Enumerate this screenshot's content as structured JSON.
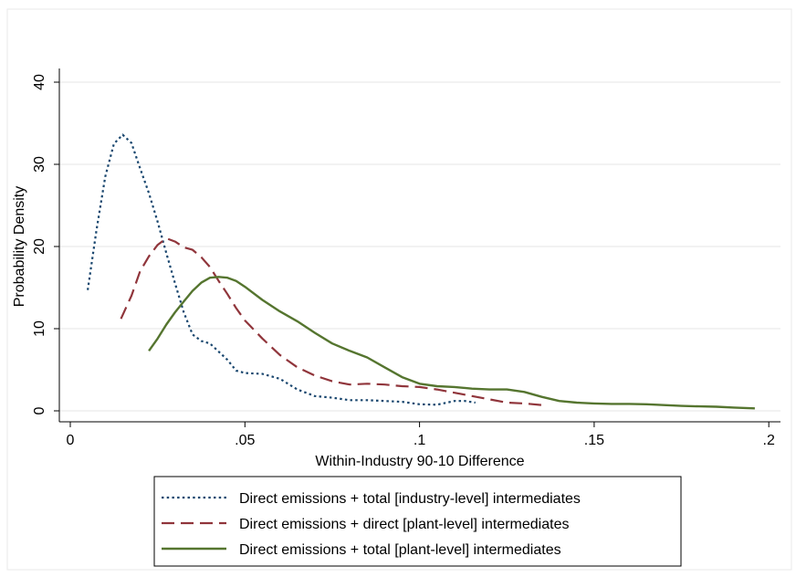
{
  "chart_data": {
    "type": "line",
    "xlabel": "Within-Industry 90-10 Difference",
    "ylabel": "Probability Density",
    "xlim": [
      -0.0017,
      0.2
    ],
    "ylim": [
      -1.4,
      41.5
    ],
    "x_ticks": [
      {
        "value": 0,
        "label": "0"
      },
      {
        "value": 0.05,
        "label": ".05"
      },
      {
        "value": 0.1,
        "label": ".1"
      },
      {
        "value": 0.15,
        "label": ".15"
      },
      {
        "value": 0.2,
        "label": ".2"
      }
    ],
    "y_ticks": [
      {
        "value": 0,
        "label": "0"
      },
      {
        "value": 10,
        "label": "10"
      },
      {
        "value": 20,
        "label": "20"
      },
      {
        "value": 30,
        "label": "30"
      },
      {
        "value": 40,
        "label": "40"
      }
    ],
    "grid": "horizontal",
    "legend_position": "bottom",
    "series": [
      {
        "name": "Direct emissions + total [industry-level] intermediates",
        "color": "#1a476f",
        "style": "dotted",
        "points": [
          [
            0.005,
            14.7
          ],
          [
            0.0075,
            22
          ],
          [
            0.01,
            28.5
          ],
          [
            0.0125,
            32.5
          ],
          [
            0.015,
            33.6
          ],
          [
            0.0175,
            32.6
          ],
          [
            0.02,
            29.5
          ],
          [
            0.0225,
            26.5
          ],
          [
            0.025,
            23
          ],
          [
            0.0275,
            19.2
          ],
          [
            0.03,
            15.5
          ],
          [
            0.0325,
            12
          ],
          [
            0.035,
            9.3
          ],
          [
            0.0375,
            8.5
          ],
          [
            0.04,
            8.2
          ],
          [
            0.0425,
            7.2
          ],
          [
            0.045,
            6.2
          ],
          [
            0.0475,
            4.9
          ],
          [
            0.05,
            4.6
          ],
          [
            0.055,
            4.5
          ],
          [
            0.06,
            3.9
          ],
          [
            0.065,
            2.6
          ],
          [
            0.07,
            1.8
          ],
          [
            0.075,
            1.6
          ],
          [
            0.08,
            1.3
          ],
          [
            0.085,
            1.3
          ],
          [
            0.09,
            1.2
          ],
          [
            0.095,
            1.1
          ],
          [
            0.1,
            0.8
          ],
          [
            0.105,
            0.75
          ],
          [
            0.11,
            1.2
          ],
          [
            0.113,
            1.2
          ],
          [
            0.116,
            1.0
          ]
        ]
      },
      {
        "name": "Direct emissions + direct [plant-level] intermediates",
        "color": "#90353b",
        "style": "dashed",
        "points": [
          [
            0.0145,
            11.2
          ],
          [
            0.0175,
            14
          ],
          [
            0.02,
            17
          ],
          [
            0.0225,
            18.8
          ],
          [
            0.025,
            20.2
          ],
          [
            0.0275,
            21
          ],
          [
            0.03,
            20.6
          ],
          [
            0.0325,
            19.9
          ],
          [
            0.035,
            19.6
          ],
          [
            0.0375,
            18.7
          ],
          [
            0.04,
            17.5
          ],
          [
            0.0425,
            15.8
          ],
          [
            0.045,
            14.2
          ],
          [
            0.0475,
            12.5
          ],
          [
            0.05,
            11
          ],
          [
            0.055,
            8.8
          ],
          [
            0.06,
            6.8
          ],
          [
            0.065,
            5.3
          ],
          [
            0.07,
            4.3
          ],
          [
            0.075,
            3.6
          ],
          [
            0.08,
            3.2
          ],
          [
            0.085,
            3.3
          ],
          [
            0.09,
            3.2
          ],
          [
            0.095,
            3.0
          ],
          [
            0.1,
            2.9
          ],
          [
            0.105,
            2.6
          ],
          [
            0.11,
            2.2
          ],
          [
            0.115,
            1.8
          ],
          [
            0.12,
            1.4
          ],
          [
            0.125,
            1.0
          ],
          [
            0.13,
            0.9
          ],
          [
            0.135,
            0.7
          ]
        ]
      },
      {
        "name": "Direct emissions + total [plant-level] intermediates",
        "color": "#55752f",
        "style": "solid",
        "points": [
          [
            0.0225,
            7.3
          ],
          [
            0.025,
            8.8
          ],
          [
            0.0275,
            10.5
          ],
          [
            0.03,
            12
          ],
          [
            0.0325,
            13.3
          ],
          [
            0.035,
            14.6
          ],
          [
            0.0375,
            15.6
          ],
          [
            0.04,
            16.2
          ],
          [
            0.0425,
            16.3
          ],
          [
            0.045,
            16.2
          ],
          [
            0.0475,
            15.8
          ],
          [
            0.05,
            15.1
          ],
          [
            0.055,
            13.5
          ],
          [
            0.06,
            12.1
          ],
          [
            0.065,
            10.9
          ],
          [
            0.07,
            9.5
          ],
          [
            0.075,
            8.2
          ],
          [
            0.08,
            7.3
          ],
          [
            0.085,
            6.5
          ],
          [
            0.09,
            5.3
          ],
          [
            0.095,
            4.1
          ],
          [
            0.1,
            3.3
          ],
          [
            0.105,
            3.0
          ],
          [
            0.11,
            2.9
          ],
          [
            0.115,
            2.7
          ],
          [
            0.12,
            2.6
          ],
          [
            0.125,
            2.6
          ],
          [
            0.13,
            2.3
          ],
          [
            0.135,
            1.7
          ],
          [
            0.14,
            1.2
          ],
          [
            0.145,
            1.0
          ],
          [
            0.15,
            0.9
          ],
          [
            0.155,
            0.85
          ],
          [
            0.16,
            0.85
          ],
          [
            0.165,
            0.8
          ],
          [
            0.17,
            0.7
          ],
          [
            0.175,
            0.6
          ],
          [
            0.18,
            0.55
          ],
          [
            0.185,
            0.5
          ],
          [
            0.19,
            0.4
          ],
          [
            0.196,
            0.3
          ]
        ]
      }
    ]
  }
}
